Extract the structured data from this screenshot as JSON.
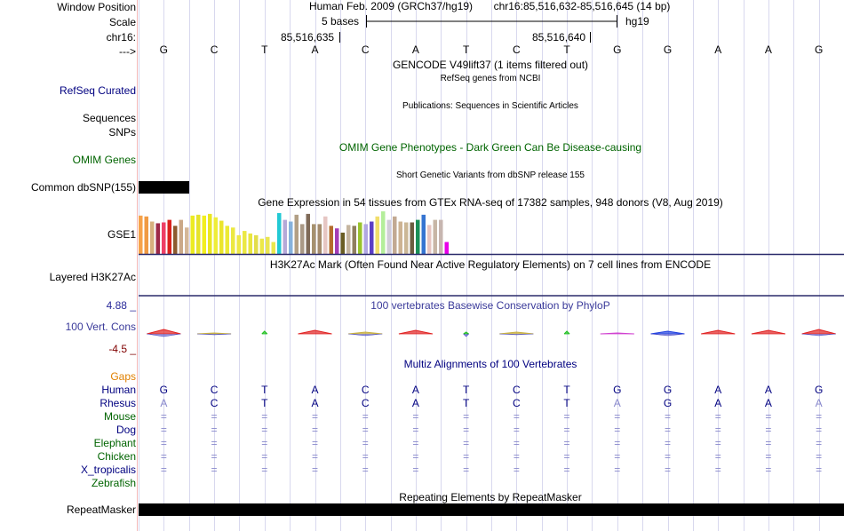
{
  "labels": {
    "window_position": "Window Position",
    "scale": "Scale",
    "chrom": "chr16:",
    "strand": "--->",
    "refseq": "RefSeq Curated",
    "sequences": "Sequences",
    "snps": "SNPs",
    "omim": "OMIM Genes",
    "dbsnp": "Common dbSNP(155)",
    "gse1": "GSE1",
    "h3k27ac": "Layered H3K27Ac",
    "cons_max": "4.88 _",
    "cons": "100 Vert. Cons",
    "cons_min": "-4.5 _",
    "gaps": "Gaps",
    "repeatmasker": "RepeatMasker"
  },
  "header": {
    "assembly": "Human Feb. 2009 (GRCh37/hg19)",
    "position": "chr16:85,516,632-85,516,645 (14 bp)",
    "scale_text": "5 bases",
    "scale_db": "hg19",
    "coord1": "85,516,635",
    "coord2": "85,516,640"
  },
  "sequence": [
    "G",
    "C",
    "T",
    "A",
    "C",
    "A",
    "T",
    "C",
    "T",
    "G",
    "G",
    "A",
    "A",
    "G"
  ],
  "tracks": {
    "gencode": "GENCODE V49lift37 (1 items filtered out)",
    "refseq": "RefSeq genes from NCBI",
    "publications": "Publications: Sequences in Scientific Articles",
    "omim": "OMIM Gene Phenotypes - Dark Green Can Be Disease-causing",
    "dbsnp": "Short Genetic Variants from dbSNP release 155",
    "gtex": "Gene Expression in 54 tissues from GTEx RNA-seq of 17382 samples, 948 donors (V8, Aug 2019)",
    "h3k27ac": "H3K27Ac Mark (Often Found Near Active Regulatory Elements) on 7 cell lines from ENCODE",
    "phylop": "100 vertebrates Basewise Conservation by PhyloP",
    "multiz": "Multiz Alignments of 100 Vertebrates",
    "repeatmasker": "Repeating Elements by RepeatMasker"
  },
  "gtex_values": [
    45,
    44,
    38,
    36,
    37,
    40,
    33,
    40,
    31,
    45,
    46,
    45,
    47,
    43,
    39,
    33,
    31,
    22,
    27,
    24,
    22,
    18,
    20,
    14,
    48,
    40,
    38,
    46,
    35,
    47,
    35,
    35,
    44,
    33,
    30,
    25,
    34,
    33,
    37,
    35,
    38,
    44,
    50,
    40,
    44,
    38,
    37,
    37,
    40,
    46,
    34,
    40,
    40,
    14
  ],
  "gtex_colors": [
    "#f6a24a",
    "#f09a43",
    "#d7b07e",
    "#9d2a48",
    "#ee4066",
    "#da211c",
    "#8c5a2e",
    "#cba988",
    "#d4b798",
    "#eceb21",
    "#e6e32a",
    "#f2ee1e",
    "#eae61f",
    "#eeed38",
    "#ebe52c",
    "#ecea34",
    "#ece840",
    "#ede846",
    "#ebe844",
    "#e9e63f",
    "#e2dd4a",
    "#ece848",
    "#eae650",
    "#ebe74c",
    "#22c9d4",
    "#b5a9d8",
    "#86b2dc",
    "#b29f85",
    "#aa9986",
    "#7f6a58",
    "#a6916e",
    "#a48b6c",
    "#e6c6c3",
    "#b56c2e",
    "#a43db6",
    "#6a5d24",
    "#c5b5a0",
    "#8f7f5f",
    "#99c32d",
    "#b1a7e2",
    "#5c3ec6",
    "#f1de6b",
    "#b4ee9b",
    "#d1cdd8",
    "#c2a993",
    "#cdb393",
    "#cbb796",
    "#6c5d40",
    "#1a8f57",
    "#3574d1",
    "#e7c4c0",
    "#c7b6a5",
    "#c7b6b0",
    "#e800e8"
  ],
  "species": [
    {
      "name": "Human",
      "color": "#000080",
      "bases": [
        "G",
        "C",
        "T",
        "A",
        "C",
        "A",
        "T",
        "C",
        "T",
        "G",
        "G",
        "A",
        "A",
        "G"
      ],
      "base_colors": [
        "#000080",
        "#000080",
        "#000080",
        "#000080",
        "#000080",
        "#000080",
        "#000080",
        "#000080",
        "#000080",
        "#000080",
        "#000080",
        "#000080",
        "#000080",
        "#000080"
      ]
    },
    {
      "name": "Rhesus",
      "color": "#000080",
      "bases": [
        "A",
        "C",
        "T",
        "A",
        "C",
        "A",
        "T",
        "C",
        "T",
        "A",
        "G",
        "A",
        "A",
        "A"
      ],
      "base_colors": [
        "#8888cc",
        "#000080",
        "#000080",
        "#000080",
        "#000080",
        "#000080",
        "#000080",
        "#000080",
        "#000080",
        "#8888cc",
        "#000080",
        "#000080",
        "#000080",
        "#8888cc"
      ]
    },
    {
      "name": "Mouse",
      "color": "#006400",
      "bases": [
        "=",
        "=",
        "=",
        "=",
        "=",
        "=",
        "=",
        "=",
        "=",
        "=",
        "=",
        "=",
        "=",
        "="
      ],
      "base_colors": [
        "#8888cc",
        "#8888cc",
        "#8888cc",
        "#8888cc",
        "#8888cc",
        "#8888cc",
        "#8888cc",
        "#8888cc",
        "#8888cc",
        "#8888cc",
        "#8888cc",
        "#8888cc",
        "#8888cc",
        "#8888cc"
      ]
    },
    {
      "name": "Dog",
      "color": "#000080",
      "bases": [
        "=",
        "=",
        "=",
        "=",
        "=",
        "=",
        "=",
        "=",
        "=",
        "=",
        "=",
        "=",
        "=",
        "="
      ],
      "base_colors": [
        "#8888cc",
        "#8888cc",
        "#8888cc",
        "#8888cc",
        "#8888cc",
        "#8888cc",
        "#8888cc",
        "#8888cc",
        "#8888cc",
        "#8888cc",
        "#8888cc",
        "#8888cc",
        "#8888cc",
        "#8888cc"
      ]
    },
    {
      "name": "Elephant",
      "color": "#006400",
      "bases": [
        "=",
        "=",
        "=",
        "=",
        "=",
        "=",
        "=",
        "=",
        "=",
        "=",
        "=",
        "=",
        "=",
        "="
      ],
      "base_colors": [
        "#8888cc",
        "#8888cc",
        "#8888cc",
        "#8888cc",
        "#8888cc",
        "#8888cc",
        "#8888cc",
        "#8888cc",
        "#8888cc",
        "#8888cc",
        "#8888cc",
        "#8888cc",
        "#8888cc",
        "#8888cc"
      ]
    },
    {
      "name": "Chicken",
      "color": "#006400",
      "bases": [
        "=",
        "=",
        "=",
        "=",
        "=",
        "=",
        "=",
        "=",
        "=",
        "=",
        "=",
        "=",
        "=",
        "="
      ],
      "base_colors": [
        "#8888cc",
        "#8888cc",
        "#8888cc",
        "#8888cc",
        "#8888cc",
        "#8888cc",
        "#8888cc",
        "#8888cc",
        "#8888cc",
        "#8888cc",
        "#8888cc",
        "#8888cc",
        "#8888cc",
        "#8888cc"
      ]
    },
    {
      "name": "X_tropicalis",
      "color": "#000080",
      "bases": [
        "=",
        "=",
        "=",
        "=",
        "=",
        "=",
        "=",
        "=",
        "=",
        "=",
        "=",
        "=",
        "=",
        "="
      ],
      "base_colors": [
        "#8888cc",
        "#8888cc",
        "#8888cc",
        "#8888cc",
        "#8888cc",
        "#8888cc",
        "#8888cc",
        "#8888cc",
        "#8888cc",
        "#8888cc",
        "#8888cc",
        "#8888cc",
        "#8888cc",
        "#8888cc"
      ]
    },
    {
      "name": "Zebrafish",
      "color": "#006400",
      "bases": [
        "",
        "",
        "",
        "",
        "",
        "",
        "",
        "",
        "",
        "",
        "",
        "",
        "",
        ""
      ],
      "base_colors": [
        "#8888cc",
        "#8888cc",
        "#8888cc",
        "#8888cc",
        "#8888cc",
        "#8888cc",
        "#8888cc",
        "#8888cc",
        "#8888cc",
        "#8888cc",
        "#8888cc",
        "#8888cc",
        "#8888cc",
        "#8888cc"
      ]
    }
  ],
  "colors": {
    "navy": "#000080",
    "green": "#006400",
    "gaps": "#e08000",
    "cons_label": "#3a3a9a",
    "cons_max": "#2a2a9a",
    "cons_min": "#800000",
    "omim_title": "#006400",
    "phylop_title": "#3a3a9a",
    "grid": "#d8d8ee",
    "border": "#f4b8b8"
  }
}
